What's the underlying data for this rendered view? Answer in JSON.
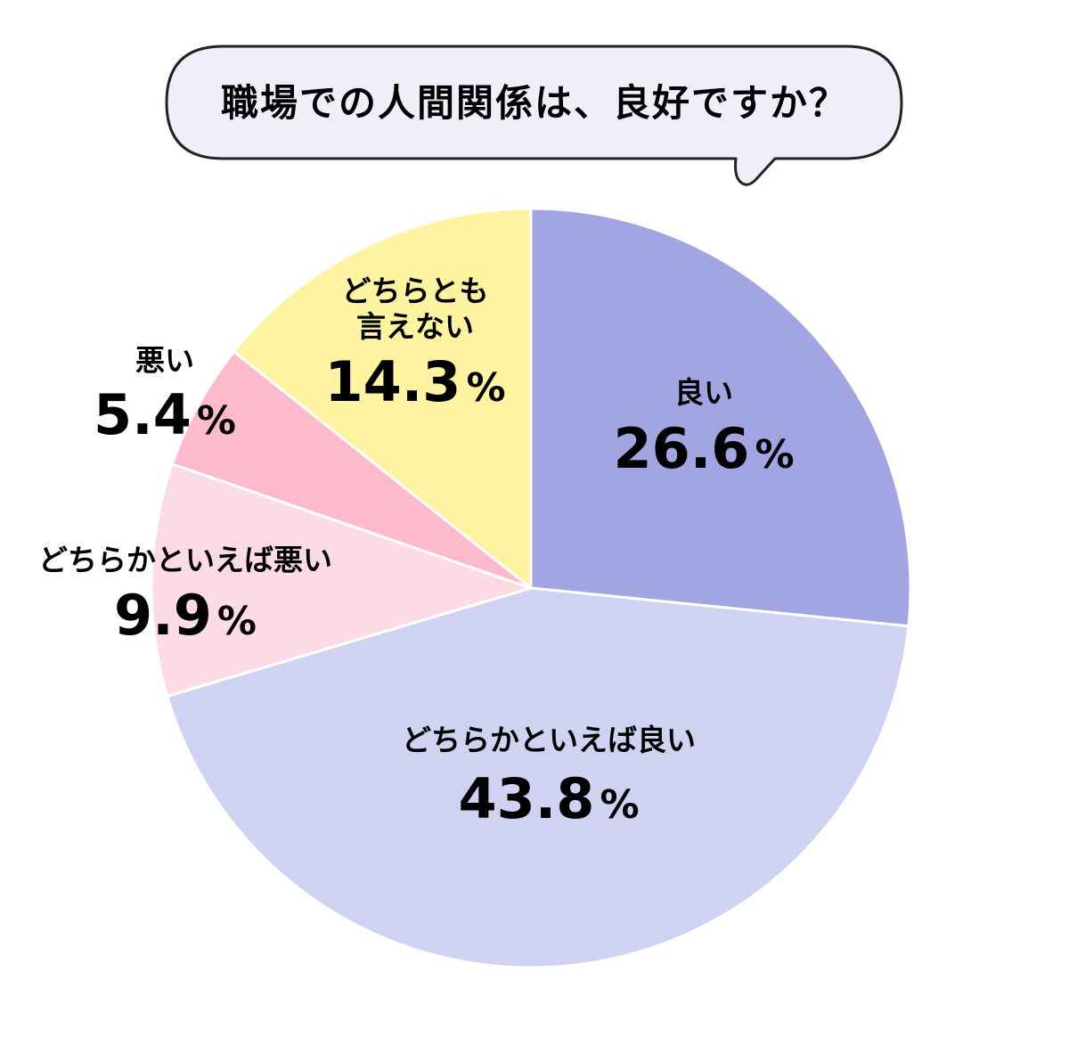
{
  "chart_data": {
    "type": "pie",
    "title": "職場での人間関係は、良好ですか？",
    "start_angle_deg": 0,
    "direction": "clockwise",
    "slices": [
      {
        "label": [
          "良い"
        ],
        "value": 26.6,
        "display": "26.6",
        "unit": "%",
        "color": "#a1a6e3"
      },
      {
        "label": [
          "どちらかといえば良い"
        ],
        "value": 43.8,
        "display": "43.8",
        "unit": "%",
        "color": "#d0d2f1"
      },
      {
        "label": [
          "どちらかといえば悪い"
        ],
        "value": 9.9,
        "display": "9.9",
        "unit": "%",
        "color": "#fddbe5"
      },
      {
        "label": [
          "悪い"
        ],
        "value": 5.4,
        "display": "5.4",
        "unit": "%",
        "color": "#fdbacd"
      },
      {
        "label": [
          "どちらとも",
          "言えない"
        ],
        "value": 14.3,
        "display": "14.3",
        "unit": "%",
        "color": "#fdf3a1"
      }
    ]
  },
  "colors": {
    "bubble_fill": "#efeffa",
    "bubble_stroke": "#222222",
    "slice_border": "#ffffff"
  }
}
